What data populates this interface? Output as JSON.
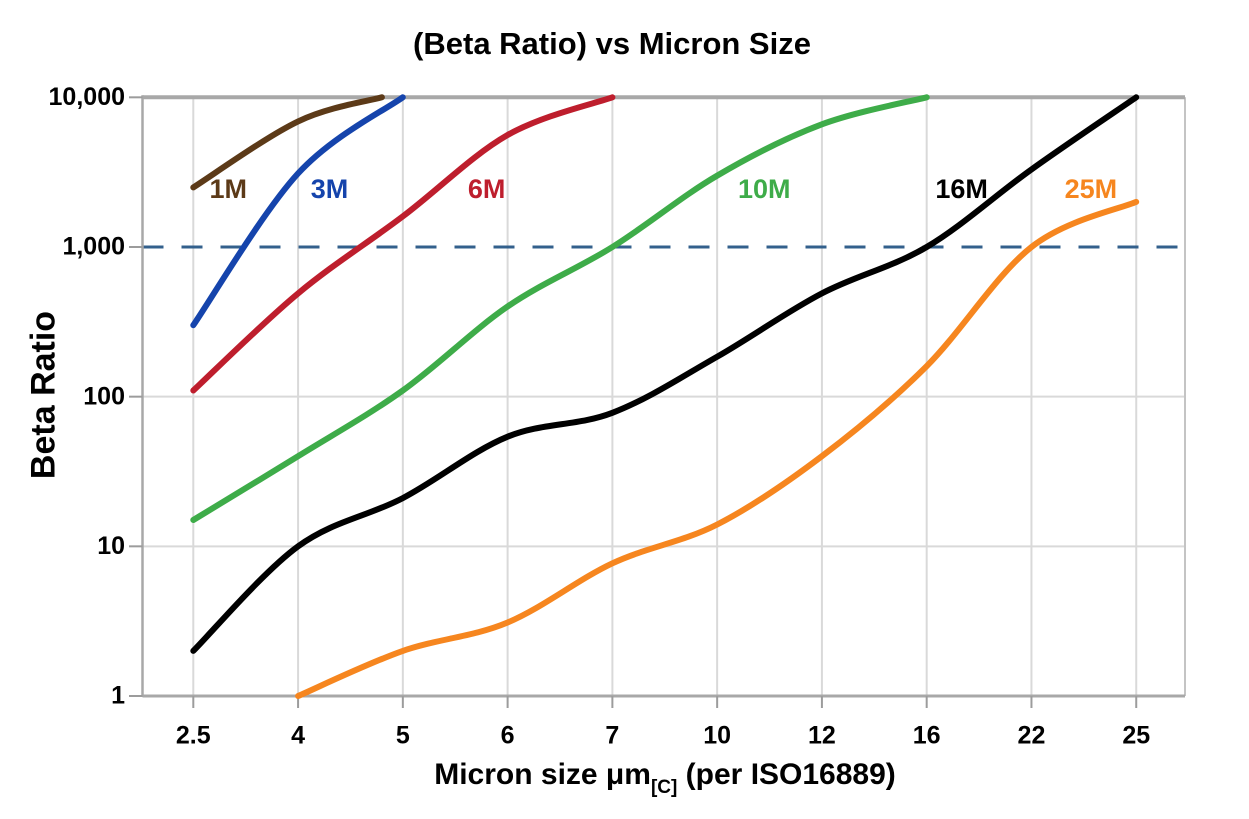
{
  "chart_data": {
    "type": "line",
    "title": "(Beta Ratio) vs Micron Size",
    "ylabel": "Beta Ratio",
    "xlabel_main": "Micron size μm",
    "xlabel_sub": "[C]",
    "xlabel_rest": " (per ISO16889)",
    "x_categories": [
      2.5,
      4,
      5,
      6,
      7,
      10,
      12,
      16,
      22,
      25
    ],
    "x_tick_labels": [
      "2.5",
      "4",
      "5",
      "6",
      "7",
      "10",
      "12",
      "16",
      "22",
      "25"
    ],
    "y_scale": "log",
    "ylim": [
      1,
      10000
    ],
    "y_ticks": [
      {
        "label": "1",
        "value": 1
      },
      {
        "label": "10",
        "value": 10
      },
      {
        "label": "100",
        "value": 100
      },
      {
        "label": "1,000",
        "value": 1000
      },
      {
        "label": "10,000",
        "value": 10000
      }
    ],
    "grid": true,
    "legend_position": "labels-on-lines",
    "reference_line": {
      "value": 1000,
      "style": "dashed",
      "color": "#33608C"
    },
    "series": [
      {
        "name": "1M",
        "color": "#5C3A18",
        "label_at": {
          "x": 3.0,
          "y": 2400
        },
        "points": [
          [
            2.5,
            2500
          ],
          [
            4,
            6900
          ],
          [
            4.8,
            10000
          ]
        ]
      },
      {
        "name": "3M",
        "color": "#1544AC",
        "label_at": {
          "x": 4.3,
          "y": 2400
        },
        "points": [
          [
            2.5,
            300
          ],
          [
            4,
            3100
          ],
          [
            5,
            10000
          ]
        ]
      },
      {
        "name": "6M",
        "color": "#BE1E2D",
        "label_at": {
          "x": 5.8,
          "y": 2400
        },
        "points": [
          [
            2.5,
            110
          ],
          [
            4,
            490
          ],
          [
            5,
            1600
          ],
          [
            6,
            5600
          ],
          [
            7,
            10000
          ]
        ]
      },
      {
        "name": "10M",
        "color": "#3EAC49",
        "label_at": {
          "x": 10.9,
          "y": 2400
        },
        "points": [
          [
            2.5,
            15
          ],
          [
            4,
            40
          ],
          [
            5,
            110
          ],
          [
            6,
            400
          ],
          [
            7,
            1000
          ],
          [
            10,
            3000
          ],
          [
            12,
            6600
          ],
          [
            16,
            10000
          ]
        ]
      },
      {
        "name": "16M",
        "color": "#000000",
        "label_at": {
          "x": 18,
          "y": 2400
        },
        "points": [
          [
            2.5,
            2
          ],
          [
            4,
            10
          ],
          [
            5,
            21
          ],
          [
            6,
            54
          ],
          [
            7,
            78
          ],
          [
            10,
            185
          ],
          [
            12,
            490
          ],
          [
            16,
            1000
          ],
          [
            22,
            3300
          ],
          [
            25,
            10000
          ]
        ]
      },
      {
        "name": "25M",
        "color": "#F6861F",
        "label_at": {
          "x": 23.7,
          "y": 2400
        },
        "points": [
          [
            4,
            1
          ],
          [
            5,
            2
          ],
          [
            6,
            3.1
          ],
          [
            7,
            7.7
          ],
          [
            10,
            14
          ],
          [
            12,
            40
          ],
          [
            16,
            160
          ],
          [
            22,
            1000
          ],
          [
            25,
            2000
          ]
        ]
      }
    ]
  },
  "colors": {
    "background": "#FFFFFF",
    "grid": "#D9D9D9",
    "axis": "#A8A8A8",
    "right_border": "#C4C4C4",
    "tick": "#9C9C9C",
    "text": "#000000",
    "reference_dash": "#33608C"
  }
}
